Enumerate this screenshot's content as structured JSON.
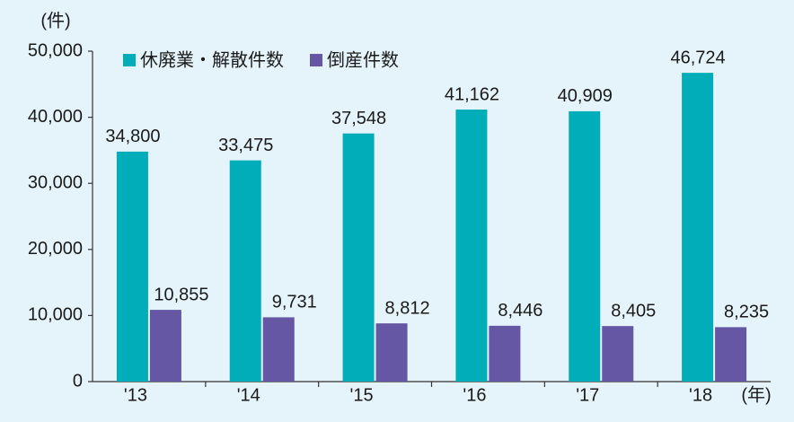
{
  "chart_data": {
    "type": "bar",
    "y_unit": "(件)",
    "x_unit": "(年)",
    "categories": [
      "'13",
      "'14",
      "'15",
      "'16",
      "'17",
      "'18"
    ],
    "series": [
      {
        "name": "休廃業・解散件数",
        "color": "#00adb9",
        "values": [
          34800,
          33475,
          37548,
          41162,
          40909,
          46724
        ],
        "value_labels": [
          "34,800",
          "33,475",
          "37,548",
          "41,162",
          "40,909",
          "46,724"
        ]
      },
      {
        "name": "倒産件数",
        "color": "#6557a4",
        "values": [
          10855,
          9731,
          8812,
          8446,
          8405,
          8235
        ],
        "value_labels": [
          "10,855",
          "9,731",
          "8,812",
          "8,446",
          "8,405",
          "8,235"
        ]
      }
    ],
    "ylim": [
      0,
      50000
    ],
    "yticks": [
      0,
      {
        "value": 10000,
        "label": "10,000"
      },
      {
        "value": 20000,
        "label": "20,000"
      },
      {
        "value": 30000,
        "label": "30,000"
      },
      {
        "value": 40000,
        "label": "40,000"
      },
      {
        "value": 50000,
        "label": "50,000"
      }
    ],
    "grid": false,
    "legend": "top-left"
  }
}
